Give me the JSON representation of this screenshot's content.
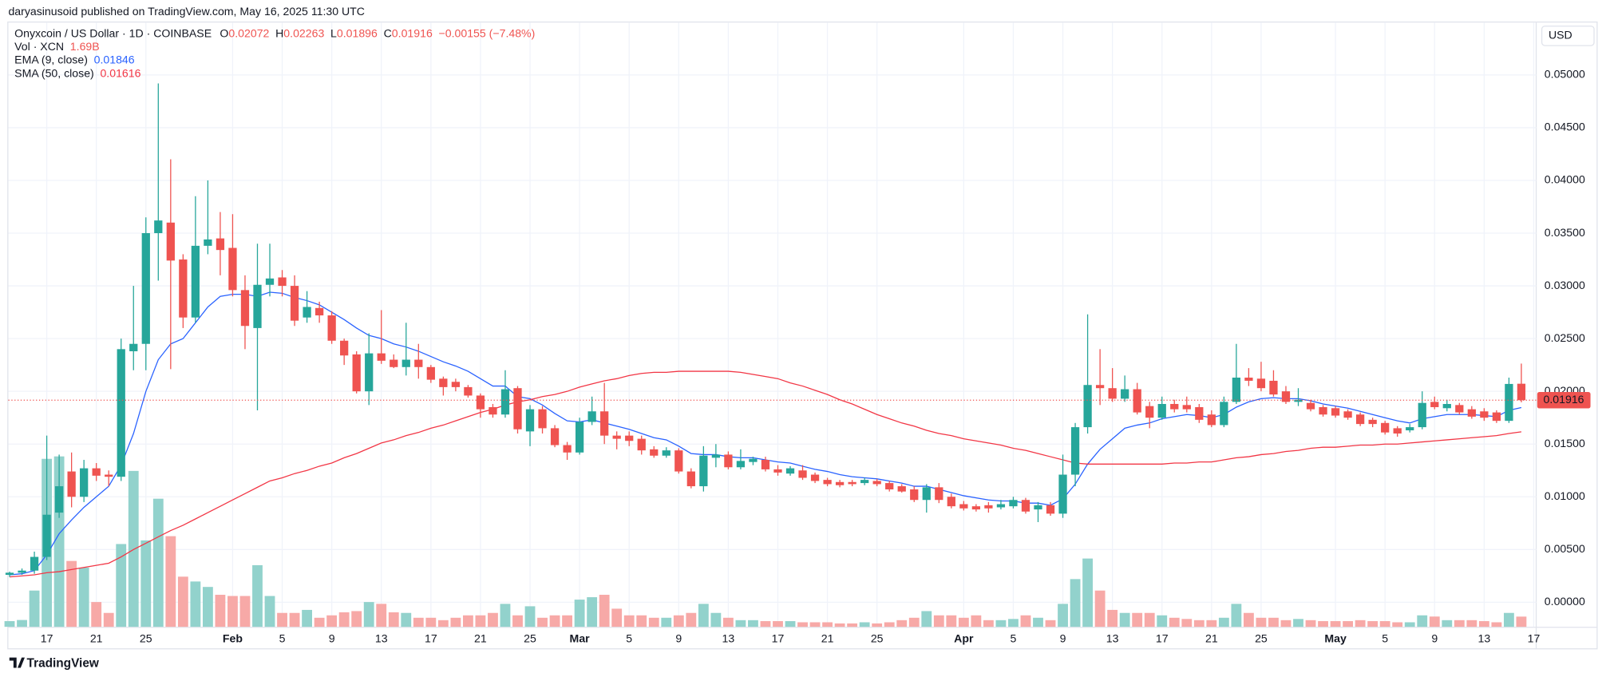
{
  "header": {
    "attribution": "daryasinusoid published on TradingView.com, May 16, 2025 11:30 UTC"
  },
  "chart_data": {
    "type": "candlestick",
    "title": "Onyxcoin / US Dollar · 1D · COINBASE",
    "ohlc_labels": [
      "O",
      "H",
      "L",
      "C"
    ],
    "change_label": "−0.00155 (−7.48%)",
    "currency": "USD",
    "up_color": "#26a69a",
    "down_color": "#ef5350",
    "open": [
      0.0026,
      0.0028,
      0.003,
      0.0043,
      0.0085,
      0.0124,
      0.01,
      0.0127,
      0.0121,
      0.0119,
      0.0238,
      0.0245,
      0.035,
      0.036,
      0.0325,
      0.027,
      0.0338,
      0.0345,
      0.0336,
      0.0296,
      0.026,
      0.0301,
      0.0308,
      0.03,
      0.027,
      0.0279,
      0.0272,
      0.0248,
      0.0235,
      0.02,
      0.0236,
      0.023,
      0.0223,
      0.023,
      0.0223,
      0.0212,
      0.0209,
      0.0204,
      0.0196,
      0.0185,
      0.0178,
      0.0203,
      0.0162,
      0.0183,
      0.0165,
      0.0149,
      0.0142,
      0.0171,
      0.0181,
      0.0158,
      0.0158,
      0.0155,
      0.0145,
      0.0139,
      0.0144,
      0.0124,
      0.011,
      0.0137,
      0.014,
      0.0128,
      0.0133,
      0.0135,
      0.0126,
      0.0122,
      0.0125,
      0.0121,
      0.0116,
      0.0114,
      0.0114,
      0.0113,
      0.0115,
      0.0113,
      0.011,
      0.0107,
      0.0097,
      0.0109,
      0.01,
      0.0093,
      0.0091,
      0.0092,
      0.009,
      0.0091,
      0.0097,
      0.0088,
      0.0092,
      0.0084,
      0.0121,
      0.0166,
      0.0206,
      0.0203,
      0.0193,
      0.0202,
      0.0186,
      0.0175,
      0.0188,
      0.0187,
      0.0185,
      0.0178,
      0.0168,
      0.019,
      0.0213,
      0.0212,
      0.021,
      0.02,
      0.019,
      0.0189,
      0.0185,
      0.0184,
      0.0181,
      0.0178,
      0.0173,
      0.017,
      0.0165,
      0.0163,
      0.0166,
      0.019,
      0.0184,
      0.0187,
      0.0183,
      0.0181,
      0.018,
      0.0172,
      0.02072
    ],
    "high": [
      0.0029,
      0.0032,
      0.0048,
      0.0158,
      0.014,
      0.0142,
      0.0135,
      0.0132,
      0.0125,
      0.025,
      0.03,
      0.0365,
      0.0492,
      0.042,
      0.033,
      0.0385,
      0.04,
      0.037,
      0.0368,
      0.031,
      0.034,
      0.034,
      0.0315,
      0.031,
      0.0295,
      0.0285,
      0.0276,
      0.025,
      0.0238,
      0.0255,
      0.0277,
      0.0235,
      0.0265,
      0.0245,
      0.0225,
      0.0214,
      0.0212,
      0.0206,
      0.0198,
      0.0188,
      0.022,
      0.0205,
      0.0187,
      0.0186,
      0.0168,
      0.0152,
      0.0175,
      0.0195,
      0.0208,
      0.0162,
      0.0162,
      0.0158,
      0.0148,
      0.0147,
      0.0146,
      0.0127,
      0.0148,
      0.015,
      0.0143,
      0.0145,
      0.0138,
      0.0138,
      0.013,
      0.0129,
      0.013,
      0.0123,
      0.0118,
      0.0116,
      0.0116,
      0.0118,
      0.0117,
      0.0115,
      0.0112,
      0.011,
      0.0112,
      0.0113,
      0.0103,
      0.0096,
      0.0093,
      0.0095,
      0.0097,
      0.01,
      0.0099,
      0.0095,
      0.0095,
      0.014,
      0.017,
      0.0273,
      0.024,
      0.0222,
      0.0215,
      0.0208,
      0.019,
      0.0195,
      0.0192,
      0.0195,
      0.0188,
      0.0182,
      0.0195,
      0.0245,
      0.0222,
      0.0228,
      0.022,
      0.0205,
      0.0203,
      0.0192,
      0.0187,
      0.0186,
      0.0183,
      0.018,
      0.0175,
      0.0172,
      0.0167,
      0.0169,
      0.02,
      0.0195,
      0.0192,
      0.0189,
      0.0186,
      0.0184,
      0.0182,
      0.0213,
      0.02263
    ],
    "low": [
      0.0024,
      0.0026,
      0.0027,
      0.004,
      0.008,
      0.009,
      0.0095,
      0.0115,
      0.011,
      0.0115,
      0.022,
      0.022,
      0.0305,
      0.0221,
      0.026,
      0.0265,
      0.033,
      0.031,
      0.029,
      0.024,
      0.0182,
      0.029,
      0.029,
      0.0262,
      0.0265,
      0.0265,
      0.0245,
      0.0225,
      0.0198,
      0.0187,
      0.0226,
      0.0222,
      0.0215,
      0.0212,
      0.0208,
      0.0196,
      0.02,
      0.0194,
      0.0175,
      0.0175,
      0.0175,
      0.016,
      0.0148,
      0.016,
      0.0147,
      0.0135,
      0.014,
      0.0168,
      0.015,
      0.0145,
      0.0148,
      0.014,
      0.0137,
      0.0137,
      0.0122,
      0.0108,
      0.0105,
      0.0128,
      0.0126,
      0.0126,
      0.013,
      0.0124,
      0.012,
      0.012,
      0.0116,
      0.0113,
      0.011,
      0.0109,
      0.011,
      0.0111,
      0.011,
      0.0105,
      0.0104,
      0.0095,
      0.0085,
      0.0094,
      0.0089,
      0.0087,
      0.0086,
      0.0085,
      0.0088,
      0.0089,
      0.0084,
      0.0076,
      0.0082,
      0.008,
      0.011,
      0.016,
      0.0187,
      0.019,
      0.019,
      0.0178,
      0.0165,
      0.0173,
      0.018,
      0.018,
      0.017,
      0.0166,
      0.0166,
      0.0188,
      0.0205,
      0.02,
      0.0195,
      0.0188,
      0.0186,
      0.0181,
      0.0176,
      0.0175,
      0.0173,
      0.0167,
      0.0166,
      0.0159,
      0.0157,
      0.0161,
      0.0164,
      0.0183,
      0.0181,
      0.0178,
      0.0174,
      0.0172,
      0.017,
      0.017,
      0.01896
    ],
    "close": [
      0.0028,
      0.003,
      0.0043,
      0.0083,
      0.011,
      0.01,
      0.0127,
      0.012,
      0.0119,
      0.024,
      0.0245,
      0.035,
      0.0362,
      0.0324,
      0.027,
      0.0338,
      0.0344,
      0.0334,
      0.0296,
      0.0262,
      0.0301,
      0.0307,
      0.03,
      0.0267,
      0.028,
      0.0272,
      0.0248,
      0.0234,
      0.02,
      0.0236,
      0.0229,
      0.0223,
      0.023,
      0.0223,
      0.0211,
      0.0204,
      0.0204,
      0.0196,
      0.0183,
      0.0178,
      0.0202,
      0.0164,
      0.0183,
      0.0165,
      0.0149,
      0.0142,
      0.0171,
      0.0181,
      0.0158,
      0.0155,
      0.0153,
      0.0144,
      0.0139,
      0.0144,
      0.0124,
      0.011,
      0.0139,
      0.014,
      0.0128,
      0.0134,
      0.0136,
      0.0126,
      0.0123,
      0.0127,
      0.0118,
      0.0115,
      0.0112,
      0.0111,
      0.0112,
      0.0116,
      0.0112,
      0.0107,
      0.0105,
      0.0097,
      0.0109,
      0.0097,
      0.0091,
      0.0089,
      0.0088,
      0.0089,
      0.0093,
      0.0097,
      0.0086,
      0.0092,
      0.0084,
      0.0121,
      0.0166,
      0.0206,
      0.0203,
      0.0193,
      0.0202,
      0.018,
      0.0175,
      0.0188,
      0.0183,
      0.0183,
      0.0173,
      0.0168,
      0.019,
      0.0213,
      0.021,
      0.0203,
      0.0197,
      0.019,
      0.0192,
      0.0183,
      0.0178,
      0.0177,
      0.0175,
      0.0169,
      0.0169,
      0.0161,
      0.016,
      0.0166,
      0.0189,
      0.0185,
      0.0188,
      0.018,
      0.0176,
      0.0175,
      0.0172,
      0.0207,
      0.01916
    ],
    "volume": {
      "name": "Vol · XCN",
      "last_label": "1.69B",
      "up_color": "#92d2cc",
      "down_color": "#f7a9a7",
      "values": [
        0.94,
        1.13,
        6.0,
        27.8,
        28.2,
        10.9,
        9.8,
        4.1,
        2.3,
        13.7,
        25.8,
        14.3,
        21.2,
        15.0,
        8.3,
        7.5,
        6.6,
        5.3,
        5.1,
        5.1,
        10.2,
        5.1,
        2.3,
        2.3,
        2.8,
        1.5,
        1.9,
        2.4,
        2.6,
        4.1,
        3.8,
        2.4,
        2.3,
        1.5,
        1.5,
        1.1,
        1.5,
        1.9,
        1.9,
        2.3,
        3.8,
        1.9,
        3.4,
        1.5,
        1.9,
        1.9,
        4.5,
        4.9,
        5.3,
        3.0,
        1.9,
        1.9,
        1.5,
        1.5,
        1.9,
        2.3,
        3.8,
        2.3,
        1.5,
        1.1,
        1.1,
        0.94,
        0.94,
        0.94,
        0.75,
        0.75,
        0.75,
        0.56,
        0.56,
        0.75,
        0.56,
        0.75,
        1.1,
        1.5,
        2.6,
        1.9,
        1.9,
        1.5,
        1.9,
        1.1,
        1.1,
        1.3,
        1.9,
        1.5,
        1.1,
        3.8,
        7.9,
        11.3,
        6.0,
        2.8,
        2.3,
        2.3,
        2.3,
        1.9,
        1.5,
        1.3,
        1.1,
        1.1,
        1.5,
        3.8,
        2.3,
        1.5,
        1.5,
        1.1,
        1.3,
        1.1,
        0.94,
        0.94,
        0.94,
        1.1,
        0.94,
        0.94,
        0.75,
        0.75,
        1.9,
        1.7,
        1.1,
        1.1,
        1.1,
        0.94,
        0.75,
        2.3,
        1.69
      ]
    },
    "volume_lim": [
      0,
      100
    ],
    "series": [
      {
        "name": "EMA (9, close)",
        "color": "#2962ff",
        "values": [
          0.0026,
          0.0027,
          0.003,
          0.0045,
          0.0065,
          0.0078,
          0.009,
          0.01,
          0.011,
          0.013,
          0.016,
          0.02,
          0.023,
          0.0245,
          0.025,
          0.0265,
          0.028,
          0.029,
          0.0292,
          0.0292,
          0.029,
          0.0294,
          0.0293,
          0.0289,
          0.0286,
          0.0282,
          0.0275,
          0.0268,
          0.026,
          0.0253,
          0.025,
          0.0245,
          0.0242,
          0.0238,
          0.0233,
          0.0228,
          0.0224,
          0.0219,
          0.0212,
          0.0205,
          0.0205,
          0.0195,
          0.0193,
          0.0187,
          0.0179,
          0.0172,
          0.0171,
          0.0173,
          0.017,
          0.0167,
          0.0164,
          0.016,
          0.0156,
          0.0154,
          0.0148,
          0.0141,
          0.014,
          0.014,
          0.0138,
          0.0137,
          0.0137,
          0.0135,
          0.0133,
          0.0132,
          0.0129,
          0.0126,
          0.0124,
          0.0121,
          0.0119,
          0.0118,
          0.0117,
          0.0115,
          0.0113,
          0.011,
          0.011,
          0.0107,
          0.0104,
          0.0101,
          0.0099,
          0.0097,
          0.0096,
          0.0096,
          0.0094,
          0.0094,
          0.0092,
          0.0098,
          0.0112,
          0.0131,
          0.0145,
          0.0155,
          0.0165,
          0.0168,
          0.017,
          0.0174,
          0.0176,
          0.0178,
          0.0177,
          0.0175,
          0.0178,
          0.0185,
          0.019,
          0.0193,
          0.0194,
          0.0193,
          0.0193,
          0.0191,
          0.0188,
          0.0186,
          0.0184,
          0.0181,
          0.0178,
          0.0175,
          0.0172,
          0.017,
          0.0174,
          0.0176,
          0.0178,
          0.0178,
          0.0178,
          0.0177,
          0.0176,
          0.0182,
          0.01846
        ]
      },
      {
        "name": "SMA (50, close)",
        "color": "#f23645",
        "values": [
          0.0024,
          0.0025,
          0.0026,
          0.0028,
          0.0029,
          0.0031,
          0.0033,
          0.0035,
          0.0037,
          0.0043,
          0.005,
          0.0056,
          0.0062,
          0.0068,
          0.0073,
          0.0079,
          0.0085,
          0.0091,
          0.0097,
          0.0103,
          0.0109,
          0.0115,
          0.0118,
          0.0122,
          0.0125,
          0.0129,
          0.0132,
          0.0137,
          0.0141,
          0.0146,
          0.0151,
          0.0154,
          0.0158,
          0.0161,
          0.0165,
          0.0168,
          0.0172,
          0.0176,
          0.018,
          0.0183,
          0.0187,
          0.019,
          0.0192,
          0.0195,
          0.0197,
          0.02,
          0.0204,
          0.0207,
          0.021,
          0.0212,
          0.0215,
          0.0217,
          0.0218,
          0.0218,
          0.0219,
          0.0219,
          0.0219,
          0.0219,
          0.0219,
          0.0218,
          0.0216,
          0.0214,
          0.0212,
          0.0208,
          0.0205,
          0.0201,
          0.0197,
          0.0192,
          0.0188,
          0.0183,
          0.0178,
          0.0174,
          0.017,
          0.0167,
          0.0163,
          0.016,
          0.0158,
          0.0155,
          0.0153,
          0.0151,
          0.0149,
          0.0146,
          0.0144,
          0.0141,
          0.0138,
          0.0135,
          0.0132,
          0.0131,
          0.0131,
          0.0131,
          0.0131,
          0.0131,
          0.0131,
          0.0131,
          0.0132,
          0.0132,
          0.0133,
          0.0133,
          0.0135,
          0.0137,
          0.0138,
          0.014,
          0.0141,
          0.0143,
          0.0144,
          0.0146,
          0.0147,
          0.0147,
          0.0148,
          0.0149,
          0.0149,
          0.015,
          0.015,
          0.0151,
          0.0152,
          0.0153,
          0.0154,
          0.0155,
          0.0156,
          0.0157,
          0.0158,
          0.016,
          0.01616
        ]
      }
    ],
    "xlim": [
      -0.1,
      123.2
    ],
    "xticks": [
      {
        "value": 3,
        "label": "17"
      },
      {
        "value": 7,
        "label": "21"
      },
      {
        "value": 11,
        "label": "25"
      },
      {
        "value": 18,
        "label": "Feb"
      },
      {
        "value": 22,
        "label": "5"
      },
      {
        "value": 26,
        "label": "9"
      },
      {
        "value": 30,
        "label": "13"
      },
      {
        "value": 34,
        "label": "17"
      },
      {
        "value": 38,
        "label": "21"
      },
      {
        "value": 42,
        "label": "25"
      },
      {
        "value": 46,
        "label": "Mar"
      },
      {
        "value": 50,
        "label": "5"
      },
      {
        "value": 54,
        "label": "9"
      },
      {
        "value": 58,
        "label": "13"
      },
      {
        "value": 62,
        "label": "17"
      },
      {
        "value": 66,
        "label": "21"
      },
      {
        "value": 70,
        "label": "25"
      },
      {
        "value": 77,
        "label": "Apr"
      },
      {
        "value": 81,
        "label": "5"
      },
      {
        "value": 85,
        "label": "9"
      },
      {
        "value": 89,
        "label": "13"
      },
      {
        "value": 93,
        "label": "17"
      },
      {
        "value": 97,
        "label": "21"
      },
      {
        "value": 101,
        "label": "25"
      },
      {
        "value": 107,
        "label": "May"
      },
      {
        "value": 111,
        "label": "5"
      },
      {
        "value": 115,
        "label": "9"
      },
      {
        "value": 119,
        "label": "13"
      },
      {
        "value": 123,
        "label": "17"
      }
    ],
    "ylim": [
      -0.00233,
      0.05497
    ],
    "yticks": [
      {
        "value": 0,
        "label": "0.00000"
      },
      {
        "value": 0.005,
        "label": "0.00500"
      },
      {
        "value": 0.01,
        "label": "0.01000"
      },
      {
        "value": 0.015,
        "label": "0.01500"
      },
      {
        "value": 0.02,
        "label": "0.02000"
      },
      {
        "value": 0.025,
        "label": "0.02500"
      },
      {
        "value": 0.03,
        "label": "0.03000"
      },
      {
        "value": 0.035,
        "label": "0.03500"
      },
      {
        "value": 0.04,
        "label": "0.04000"
      },
      {
        "value": 0.045,
        "label": "0.04500"
      },
      {
        "value": 0.05,
        "label": "0.05000"
      }
    ],
    "grid": true
  },
  "footer": {
    "brand": "TradingView"
  }
}
